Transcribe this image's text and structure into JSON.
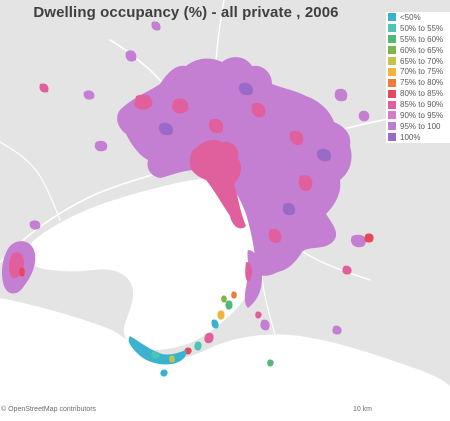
{
  "map": {
    "title": "Dwelling occupancy (%) - all private , 2006",
    "attribution": "© OpenStreetMap contributors",
    "scale_label": "10 km",
    "background_color": "#e4e4e4",
    "water_color": "#ffffff",
    "road_color": "#ffffff"
  },
  "legend": {
    "items": [
      {
        "label": "<50%",
        "color": "#3bb3cf"
      },
      {
        "label": "50% to 55%",
        "color": "#4ec4b6"
      },
      {
        "label": "55% to 60%",
        "color": "#52b878"
      },
      {
        "label": "60% to 65%",
        "color": "#7ab648"
      },
      {
        "label": "65% to 70%",
        "color": "#c3c24a"
      },
      {
        "label": "70% to 75%",
        "color": "#f2b33d"
      },
      {
        "label": "75% to 80%",
        "color": "#ef7a3a"
      },
      {
        "label": "80% to 85%",
        "color": "#e8485e"
      },
      {
        "label": "85% to 90%",
        "color": "#e25f9e"
      },
      {
        "label": "90% to 95%",
        "color": "#d67cc7"
      },
      {
        "label": "95% to 100",
        "color": "#ba80d2"
      },
      {
        "label": "100%",
        "color": "#9a6ac8"
      }
    ]
  }
}
